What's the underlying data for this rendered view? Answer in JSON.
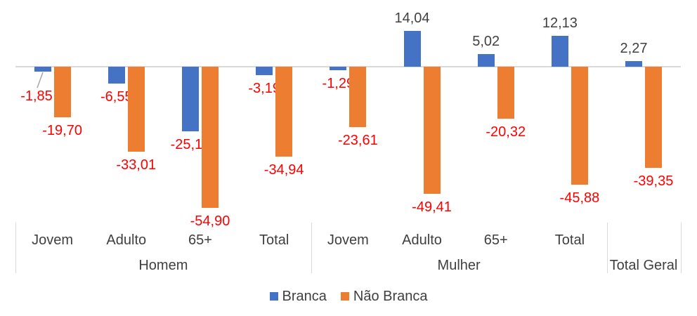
{
  "chart_data": {
    "type": "bar",
    "title": "",
    "orientation": "vertical",
    "value_axis_visible": false,
    "gridlines": false,
    "baseline_value": 0,
    "legend_position": "bottom",
    "categories": [
      "Jovem",
      "Adulto",
      "65+",
      "Total",
      "Jovem",
      "Adulto",
      "65+",
      "Total",
      ""
    ],
    "groups": [
      {
        "label": "Homem",
        "span": 4,
        "categories": [
          "Jovem",
          "Adulto",
          "65+",
          "Total"
        ]
      },
      {
        "label": "Mulher",
        "span": 4,
        "categories": [
          "Jovem",
          "Adulto",
          "65+",
          "Total"
        ]
      },
      {
        "label": "Total Geral",
        "span": 1,
        "categories": [
          ""
        ]
      }
    ],
    "series": [
      {
        "name": "Branca",
        "color": "#4472C4",
        "values": [
          -1.85,
          -6.55,
          -25.13,
          -3.19,
          -1.29,
          14.04,
          5.02,
          12.13,
          2.27
        ],
        "labels": [
          "-1,85",
          "-6,55",
          "-25,13",
          "-3,19",
          "-1,29",
          "14,04",
          "5,02",
          "12,13",
          "2,27"
        ]
      },
      {
        "name": "Não Branca",
        "color": "#ED7D31",
        "values": [
          -19.7,
          -33.01,
          -54.9,
          -34.94,
          -23.61,
          -49.41,
          -20.32,
          -45.88,
          -39.35
        ],
        "labels": [
          "-19,70",
          "-33,01",
          "-54,90",
          "-34,94",
          "-23,61",
          "-49,41",
          "-20,32",
          "-45,88",
          "-39,35"
        ]
      }
    ],
    "label_color_positive": "#404040",
    "label_color_negative": "#FF0000",
    "axis_line_color": "#D9D9D9",
    "leader_line_color": "#A6A6A6",
    "approx_value_range": [
      -60,
      20
    ]
  },
  "legend": {
    "items": [
      {
        "label": "Branca",
        "color": "#4472C4"
      },
      {
        "label": "Não Branca",
        "color": "#ED7D31"
      }
    ]
  }
}
